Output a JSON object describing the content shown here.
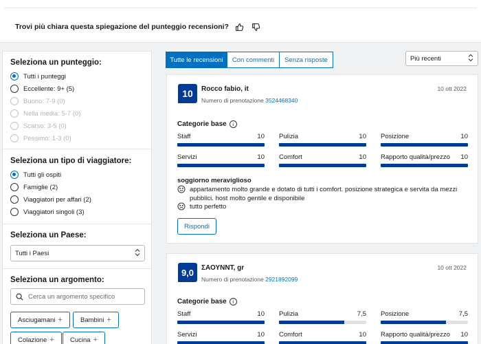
{
  "feedback": {
    "question": "Trovi più chiara questa spiegazione del punteggio recensioni?"
  },
  "sidebar": {
    "score_title": "Seleziona un punteggio:",
    "score_options": [
      {
        "label": "Tutti i punteggi",
        "selected": true,
        "disabled": false
      },
      {
        "label": "Eccellente: 9+ (5)",
        "selected": false,
        "disabled": false
      },
      {
        "label": "Buono: 7-9 (0)",
        "selected": false,
        "disabled": true
      },
      {
        "label": "Nella media: 5-7 (0)",
        "selected": false,
        "disabled": true
      },
      {
        "label": "Scarso: 3-5 (0)",
        "selected": false,
        "disabled": true
      },
      {
        "label": "Pessimo: 1-3 (0)",
        "selected": false,
        "disabled": true
      }
    ],
    "traveler_title": "Seleziona un tipo di viaggiatore:",
    "traveler_options": [
      {
        "label": "Tutti gli ospiti",
        "selected": true
      },
      {
        "label": "Famiglie (2)",
        "selected": false
      },
      {
        "label": "Viaggiatori per affari (2)",
        "selected": false
      },
      {
        "label": "Viaggiatori singoli (3)",
        "selected": false
      }
    ],
    "country_title": "Seleziona un Paese:",
    "country_value": "Tutti i Paesi",
    "topic_title": "Seleziona un argomento:",
    "topic_placeholder": "Cerca un argomento specifico",
    "topic_tags": [
      "Asciugamani",
      "Bambini",
      "Colazione",
      "Cucina"
    ]
  },
  "tabs": [
    "Tutte le recensioni",
    "Con commenti",
    "Senza risposte"
  ],
  "sort": {
    "value": "Più recenti"
  },
  "reviews": [
    {
      "score": "10",
      "name": "Rocco fabio, it",
      "booking_label": "Numero di prenotazione",
      "booking_number": "3524468340",
      "date": "10 ott 2022",
      "categories_title": "Categorie base",
      "metrics": [
        {
          "label": "Staff",
          "value": "10",
          "fraction": 1.0
        },
        {
          "label": "Pulizia",
          "value": "10",
          "fraction": 1.0
        },
        {
          "label": "Posizione",
          "value": "10",
          "fraction": 1.0
        },
        {
          "label": "Servizi",
          "value": "10",
          "fraction": 1.0
        },
        {
          "label": "Comfort",
          "value": "10",
          "fraction": 1.0
        },
        {
          "label": "Rapporto qualità/prezzo",
          "value": "10",
          "fraction": 1.0
        }
      ],
      "title": "soggiorno meraviglioso",
      "positive": "appartamento molto grande e dotato di tutti i comfort. posizione strategica e servita da mezzi pubblici. host molto gentile e disponibile",
      "negative": "tutto perfetto",
      "reply_label": "Rispondi"
    },
    {
      "score": "9,0",
      "name": "ΣΑΟΥΝΝΤ, gr",
      "booking_label": "Numero di prenotazione",
      "booking_number": "2921892099",
      "date": "10 ott 2022",
      "categories_title": "Categorie base",
      "metrics": [
        {
          "label": "Staff",
          "value": "10",
          "fraction": 1.0
        },
        {
          "label": "Pulizia",
          "value": "7,5",
          "fraction": 0.75
        },
        {
          "label": "Posizione",
          "value": "7,5",
          "fraction": 0.75
        },
        {
          "label": "Servizi",
          "value": "10",
          "fraction": 1.0
        },
        {
          "label": "Comfort",
          "value": "10",
          "fraction": 1.0
        },
        {
          "label": "Rapporto qualità/prezzo",
          "value": "10",
          "fraction": 1.0
        }
      ]
    }
  ],
  "colors": {
    "accent": "#0071c2",
    "score_badge": "#003b95",
    "bar_fill": "#003b95"
  }
}
